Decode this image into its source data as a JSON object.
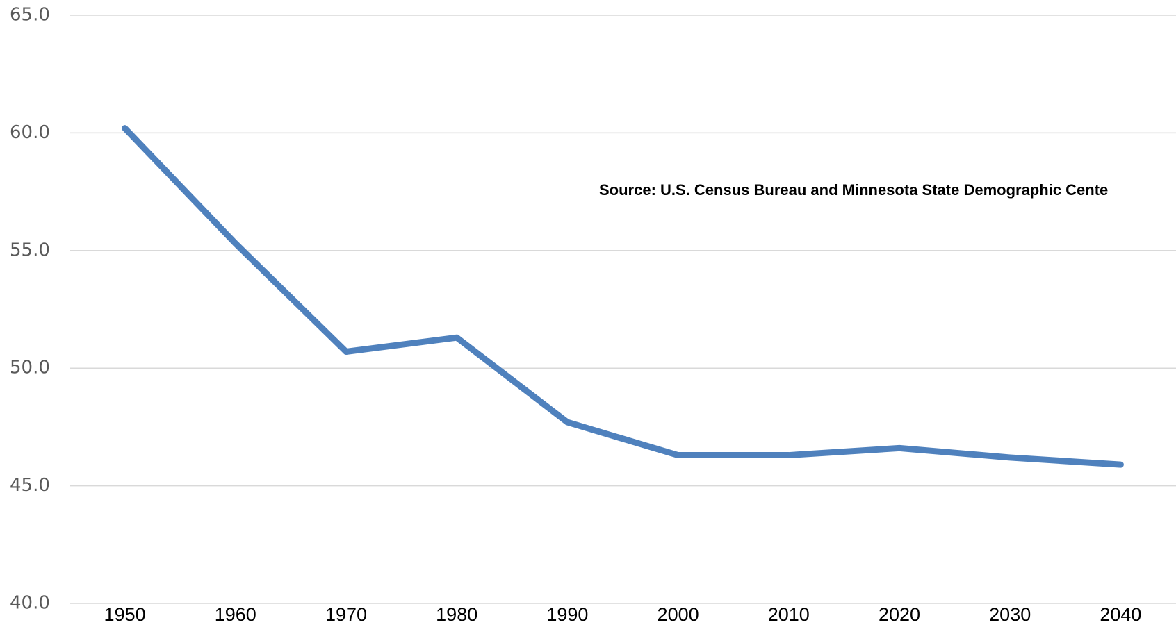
{
  "chart_data": {
    "type": "line",
    "annotation": "Source: U.S. Census Bureau and Minnesota State Demographic Cente",
    "categories": [
      "1950",
      "1960",
      "1970",
      "1980",
      "1990",
      "2000",
      "2010",
      "2020",
      "2030",
      "2040"
    ],
    "series": [
      {
        "color": "#4f81bd",
        "values": [
          60.2,
          55.3,
          50.7,
          51.3,
          47.7,
          46.3,
          46.3,
          46.6,
          46.2,
          45.9
        ]
      }
    ],
    "ylim": [
      40,
      65
    ],
    "yticks": [
      {
        "value": 40,
        "label": "40.0"
      },
      {
        "value": 45,
        "label": "45.0"
      },
      {
        "value": 50,
        "label": "50.0"
      },
      {
        "value": 55,
        "label": "55.0"
      },
      {
        "value": 60,
        "label": "60.0"
      },
      {
        "value": 65,
        "label": "65.0"
      }
    ],
    "grid": true
  }
}
